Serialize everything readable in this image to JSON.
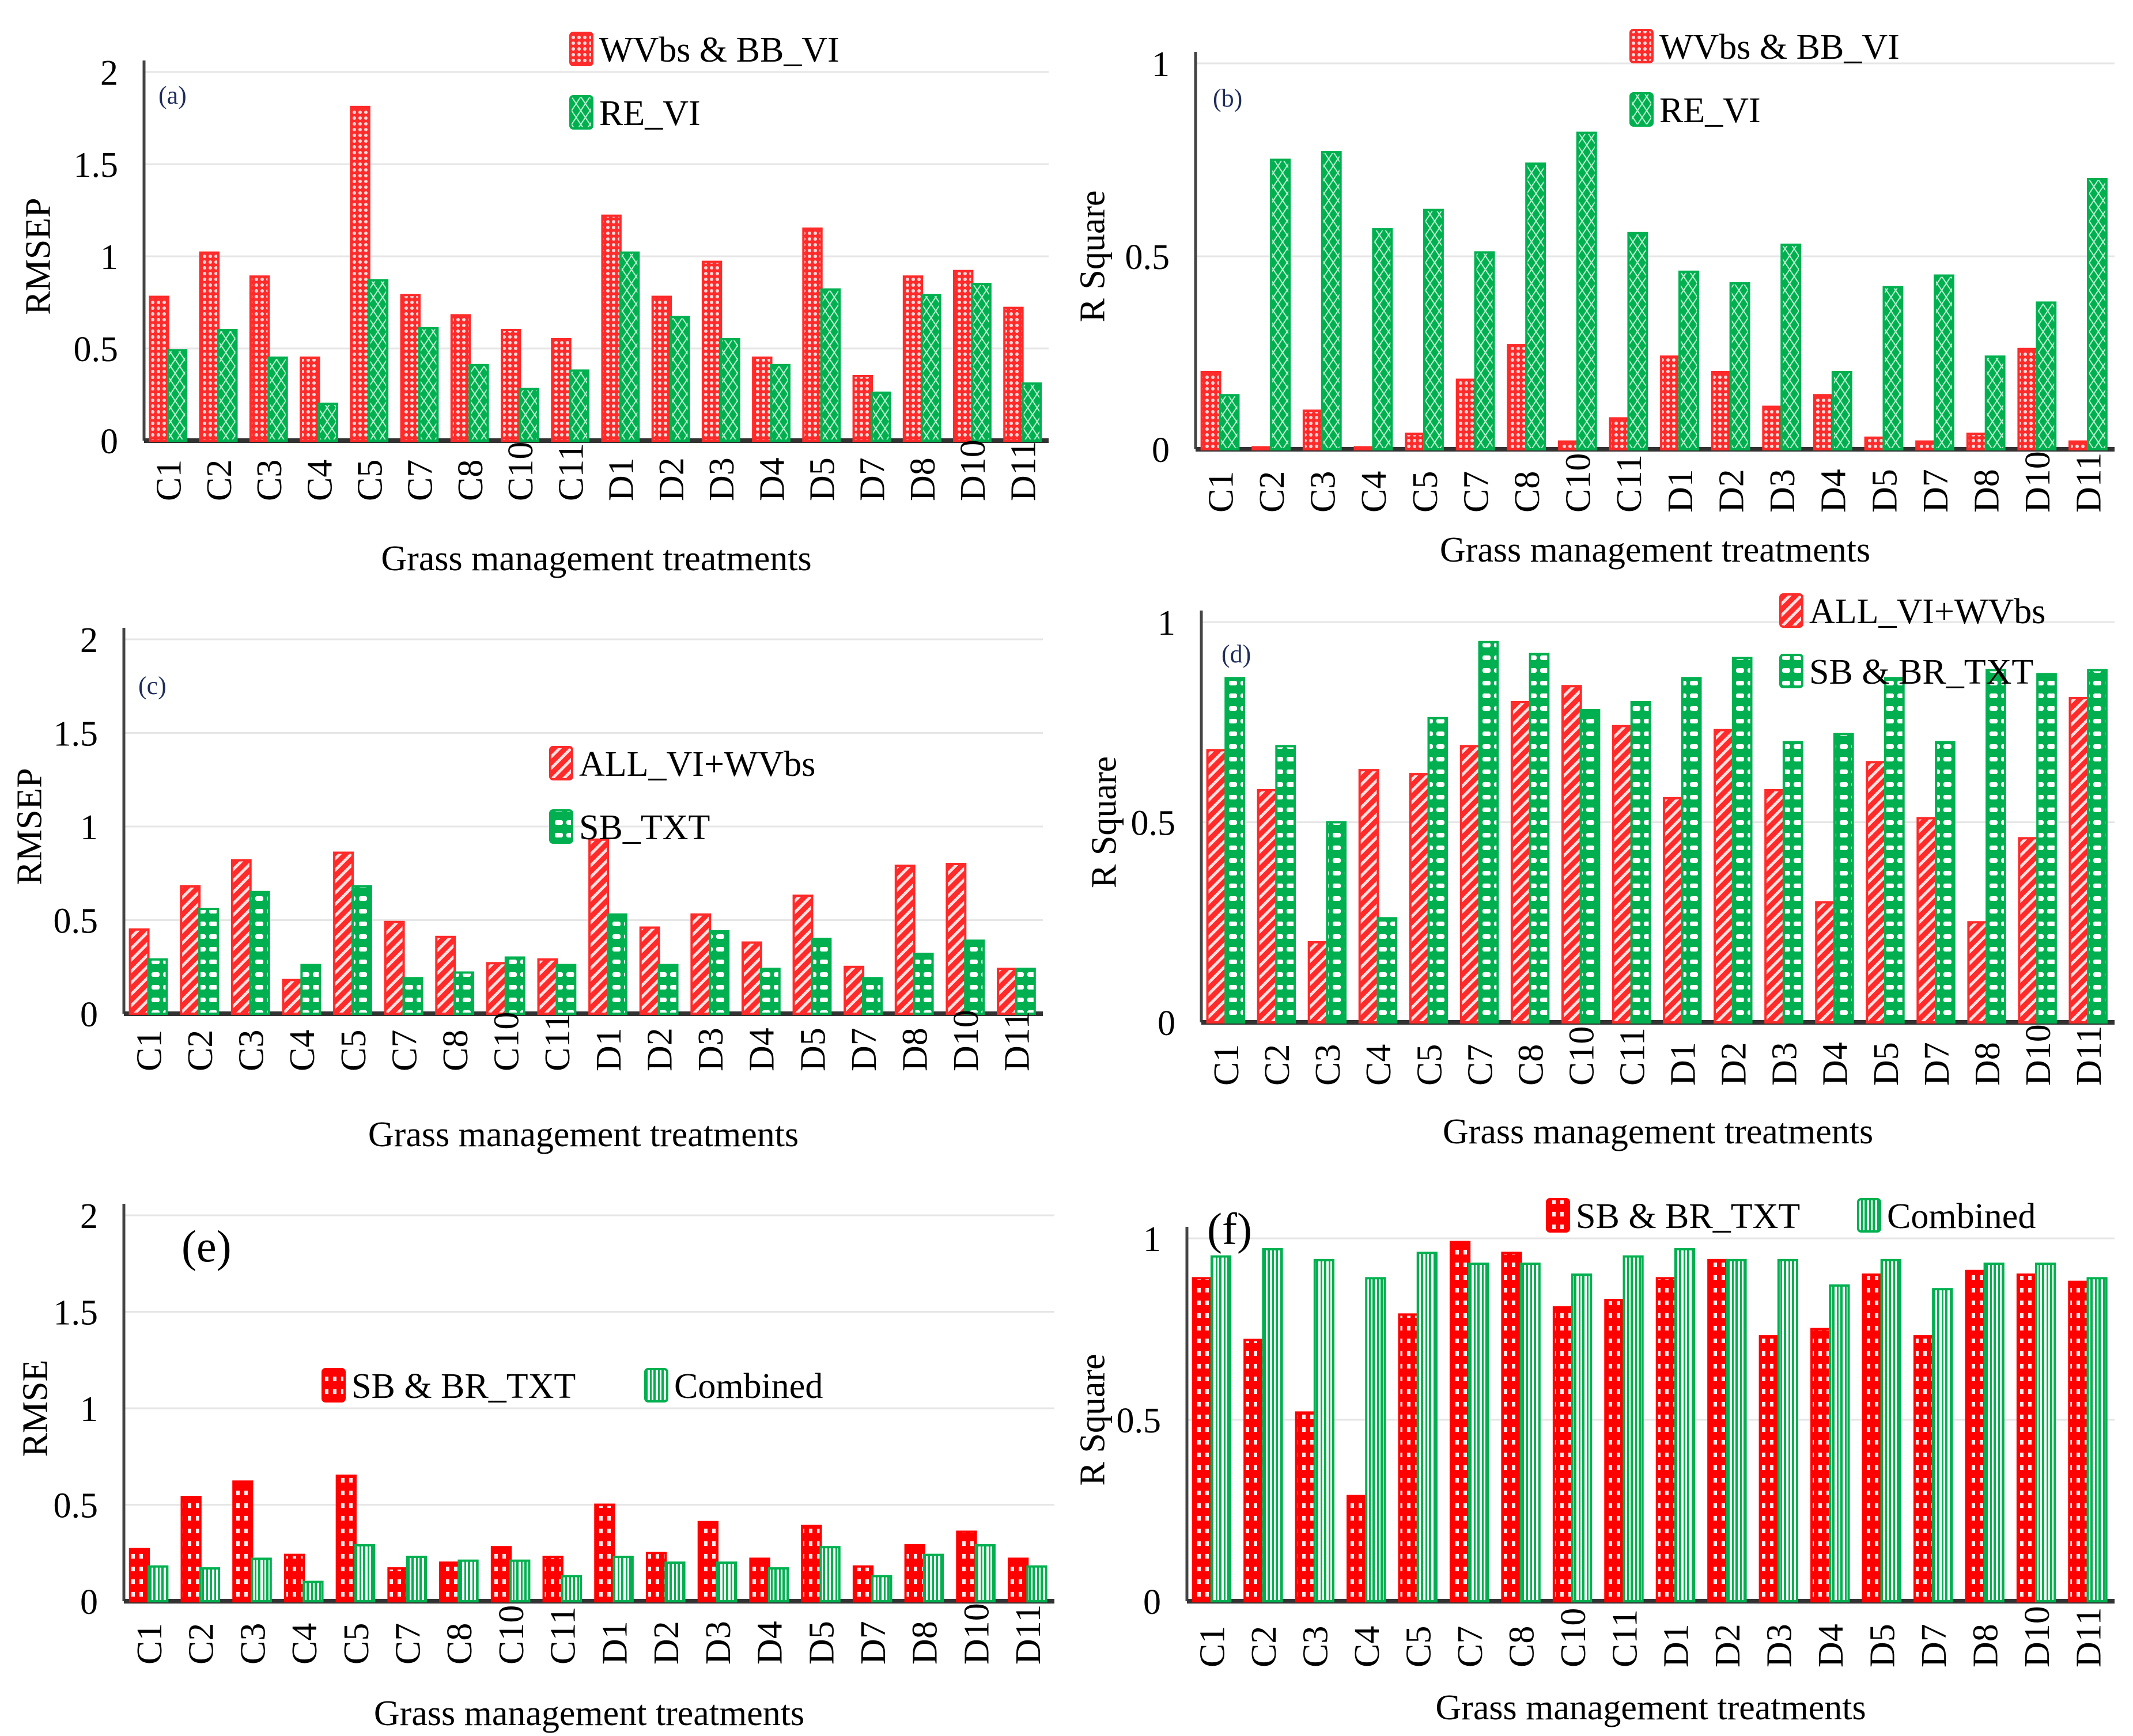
{
  "chart_data": [
    {
      "id": "a",
      "type": "bar",
      "tag": "(a)",
      "title": "",
      "xlabel": "Grass   management treatments",
      "ylabel": "RMSEP",
      "ylim": [
        0,
        2
      ],
      "yticks": [
        "0",
        "0.5",
        "1",
        "1.5",
        "2"
      ],
      "ytick_values": [
        0,
        0.5,
        1,
        1.5,
        2
      ],
      "grid": true,
      "legend_position": "top-right",
      "categories": [
        "C1",
        "C2",
        "C3",
        "C4",
        "C5",
        "C7",
        "C8",
        "C10",
        "C11",
        "D1",
        "D2",
        "D3",
        "D4",
        "D5",
        "D7",
        "D8",
        "D10",
        "D11"
      ],
      "series": [
        {
          "name": "WVbs & BB_VI",
          "color": "#ff2a2a",
          "pattern": "dots",
          "values": [
            0.78,
            1.02,
            0.89,
            0.45,
            1.81,
            0.79,
            0.68,
            0.6,
            0.55,
            1.22,
            0.78,
            0.97,
            0.45,
            1.15,
            0.35,
            0.89,
            0.92,
            0.72
          ]
        },
        {
          "name": "RE_VI",
          "color": "#00b050",
          "pattern": "diamond",
          "values": [
            0.49,
            0.6,
            0.45,
            0.2,
            0.87,
            0.61,
            0.41,
            0.28,
            0.38,
            1.02,
            0.67,
            0.55,
            0.41,
            0.82,
            0.26,
            0.79,
            0.85,
            0.31
          ]
        }
      ]
    },
    {
      "id": "b",
      "type": "bar",
      "tag": "(b)",
      "title": "",
      "xlabel": "Grass management treatments",
      "ylabel": "R Square",
      "ylim": [
        0,
        1
      ],
      "yticks": [
        "0",
        "0.5",
        "1"
      ],
      "ytick_values": [
        0,
        0.5,
        1
      ],
      "grid": true,
      "legend_position": "top-right",
      "categories": [
        "C1",
        "C2",
        "C3",
        "C4",
        "C5",
        "C7",
        "C8",
        "C10",
        "C11",
        "D1",
        "D2",
        "D3",
        "D4",
        "D5",
        "D7",
        "D8",
        "D10",
        "D11"
      ],
      "series": [
        {
          "name": "WVbs & BB_VI",
          "color": "#ff2a2a",
          "pattern": "dots",
          "values": [
            0.2,
            0.005,
            0.1,
            0.005,
            0.04,
            0.18,
            0.27,
            0.02,
            0.08,
            0.24,
            0.2,
            0.11,
            0.14,
            0.03,
            0.02,
            0.04,
            0.26,
            0.02
          ]
        },
        {
          "name": "RE_VI",
          "color": "#00b050",
          "pattern": "diamond",
          "values": [
            0.14,
            0.75,
            0.77,
            0.57,
            0.62,
            0.51,
            0.74,
            0.82,
            0.56,
            0.46,
            0.43,
            0.53,
            0.2,
            0.42,
            0.45,
            0.24,
            0.38,
            0.7
          ]
        }
      ]
    },
    {
      "id": "c",
      "type": "bar",
      "tag": "(c)",
      "title": "",
      "xlabel": "Grass management treatments",
      "ylabel": "RMSEP",
      "ylim": [
        0,
        2
      ],
      "yticks": [
        "0",
        "0.5",
        "1",
        "1.5",
        "2"
      ],
      "ytick_values": [
        0,
        0.5,
        1,
        1.5,
        2
      ],
      "grid": true,
      "legend_position": "upper-center-right",
      "categories": [
        "C1",
        "C2",
        "C3",
        "C4",
        "C5",
        "C7",
        "C8",
        "C10",
        "C11",
        "D1",
        "D2",
        "D3",
        "D4",
        "D5",
        "D7",
        "D8",
        "D10",
        "D11"
      ],
      "series": [
        {
          "name": "ALL_VI+WVbs",
          "color": "#ff2a2a",
          "pattern": "diagonal",
          "values": [
            0.45,
            0.68,
            0.82,
            0.18,
            0.86,
            0.49,
            0.41,
            0.27,
            0.29,
            0.93,
            0.46,
            0.53,
            0.38,
            0.63,
            0.25,
            0.79,
            0.8,
            0.24
          ]
        },
        {
          "name": "SB_TXT",
          "color": "#00b050",
          "pattern": "horizontal",
          "values": [
            0.29,
            0.56,
            0.65,
            0.26,
            0.68,
            0.19,
            0.22,
            0.3,
            0.26,
            0.53,
            0.26,
            0.44,
            0.24,
            0.4,
            0.19,
            0.32,
            0.39,
            0.24
          ]
        }
      ]
    },
    {
      "id": "d",
      "type": "bar",
      "tag": "(d)",
      "title": "",
      "xlabel": "Grass management treatments",
      "ylabel": "R Square",
      "ylim": [
        0,
        1
      ],
      "yticks": [
        "0",
        "0.5",
        "1"
      ],
      "ytick_values": [
        0,
        0.5,
        1
      ],
      "grid": true,
      "legend_position": "top-right",
      "categories": [
        "C1",
        "C2",
        "C3",
        "C4",
        "C5",
        "C7",
        "C8",
        "C10",
        "C11",
        "D1",
        "D2",
        "D3",
        "D4",
        "D5",
        "D7",
        "D8",
        "D10",
        "D11"
      ],
      "series": [
        {
          "name": "ALL_VI+WVbs",
          "color": "#ff2a2a",
          "pattern": "diagonal",
          "values": [
            0.68,
            0.58,
            0.2,
            0.63,
            0.62,
            0.69,
            0.8,
            0.84,
            0.74,
            0.56,
            0.73,
            0.58,
            0.3,
            0.65,
            0.51,
            0.25,
            0.46,
            0.81
          ]
        },
        {
          "name": "SB & BR_TXT",
          "color": "#00b050",
          "pattern": "horizontal",
          "values": [
            0.86,
            0.69,
            0.5,
            0.26,
            0.76,
            0.95,
            0.92,
            0.78,
            0.8,
            0.86,
            0.91,
            0.7,
            0.72,
            0.86,
            0.7,
            0.88,
            0.87,
            0.88
          ]
        }
      ]
    },
    {
      "id": "e",
      "type": "bar",
      "tag": "(e)",
      "title": "",
      "xlabel": "Grass management treatments",
      "ylabel": "RMSE",
      "ylim": [
        0,
        2
      ],
      "yticks": [
        "0",
        "0.5",
        "1",
        "1.5",
        "2"
      ],
      "ytick_values": [
        0,
        0.5,
        1,
        1.5,
        2
      ],
      "grid": true,
      "legend_position": "center",
      "categories": [
        "C1",
        "C2",
        "C3",
        "C4",
        "C5",
        "C7",
        "C8",
        "C10",
        "C11",
        "D1",
        "D2",
        "D3",
        "D4",
        "D5",
        "D7",
        "D8",
        "D10",
        "D11"
      ],
      "series": [
        {
          "name": "SB & BR_TXT",
          "color": "#ff0000",
          "pattern": "dots-big",
          "values": [
            0.27,
            0.54,
            0.62,
            0.24,
            0.65,
            0.17,
            0.2,
            0.28,
            0.23,
            0.5,
            0.25,
            0.41,
            0.22,
            0.39,
            0.18,
            0.29,
            0.36,
            0.22
          ]
        },
        {
          "name": "Combined",
          "color": "#00b050",
          "pattern": "vertical",
          "values": [
            0.18,
            0.17,
            0.22,
            0.1,
            0.29,
            0.23,
            0.21,
            0.21,
            0.13,
            0.23,
            0.2,
            0.2,
            0.17,
            0.28,
            0.13,
            0.24,
            0.29,
            0.18
          ]
        }
      ]
    },
    {
      "id": "f",
      "type": "bar",
      "tag": "(f)",
      "title": "",
      "xlabel": "Grass management treatments",
      "ylabel": "R Square",
      "ylim": [
        0,
        1
      ],
      "yticks": [
        "0",
        "0.5",
        "1"
      ],
      "ytick_values": [
        0,
        0.5,
        1
      ],
      "grid": true,
      "legend_position": "top-right",
      "categories": [
        "C1",
        "C2",
        "C3",
        "C4",
        "C5",
        "C7",
        "C8",
        "C10",
        "C11",
        "D1",
        "D2",
        "D3",
        "D4",
        "D5",
        "D7",
        "D8",
        "D10",
        "D11"
      ],
      "series": [
        {
          "name": "SB & BR_TXT",
          "color": "#ff0000",
          "pattern": "dots-big",
          "values": [
            0.89,
            0.72,
            0.52,
            0.29,
            0.79,
            0.99,
            0.96,
            0.81,
            0.83,
            0.89,
            0.94,
            0.73,
            0.75,
            0.9,
            0.73,
            0.91,
            0.9,
            0.88
          ]
        },
        {
          "name": "Combined",
          "color": "#00b050",
          "pattern": "vertical",
          "values": [
            0.95,
            0.97,
            0.94,
            0.89,
            0.96,
            0.93,
            0.93,
            0.9,
            0.95,
            0.97,
            0.94,
            0.94,
            0.87,
            0.94,
            0.86,
            0.93,
            0.93,
            0.89
          ]
        }
      ]
    }
  ]
}
